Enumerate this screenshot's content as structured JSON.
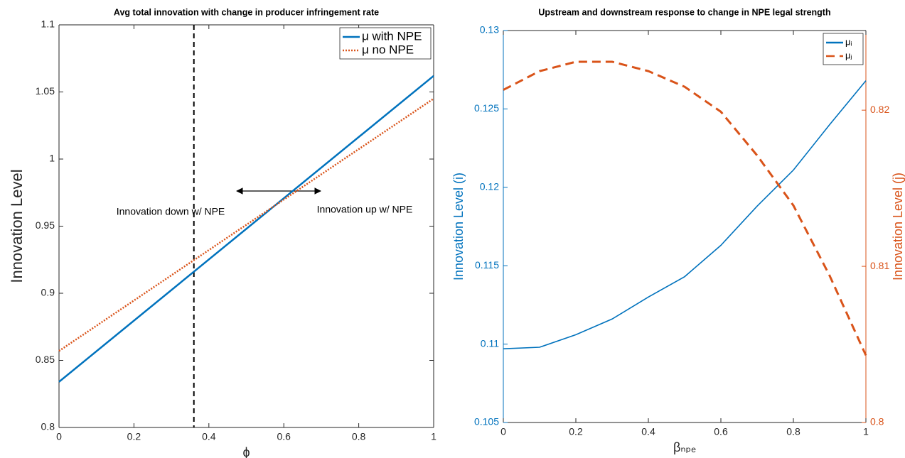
{
  "chart_data": [
    {
      "type": "line",
      "title": "Avg total innovation with change in producer infringement rate",
      "xlabel": "ϕ",
      "ylabel": "Innovation Level",
      "xlim": [
        0,
        1
      ],
      "xticks": [
        0,
        0.2,
        0.4,
        0.6,
        0.8,
        1
      ],
      "ylim": [
        0.8,
        1.1
      ],
      "yticks": [
        0.8,
        0.85,
        0.9,
        0.95,
        1,
        1.05,
        1.1
      ],
      "vline": 0.36,
      "legend": "northeast",
      "annotations": [
        "Innovation down w/ NPE",
        "Innovation up w/ NPE"
      ],
      "series": [
        {
          "name": "μ with NPE",
          "color": "#0072bd",
          "style": "solid",
          "x": [
            0,
            1
          ],
          "values": [
            0.834,
            1.062
          ]
        },
        {
          "name": "μ no NPE",
          "color": "#d95319",
          "style": "dotted",
          "x": [
            0,
            1
          ],
          "values": [
            0.857,
            1.045
          ]
        }
      ]
    },
    {
      "type": "line",
      "title": "Upstream and downstream response to change in NPE legal strength",
      "xlabel": "βₙₚₑ",
      "ylabel": "Innovation Level (i)",
      "y2label": "Innovation Level (j)",
      "xlim": [
        0,
        1
      ],
      "xticks": [
        0,
        0.2,
        0.4,
        0.6,
        0.8,
        1
      ],
      "ylim": [
        0.105,
        0.13
      ],
      "yticks": [
        0.105,
        0.11,
        0.115,
        0.12,
        0.125,
        0.13
      ],
      "y2lim": [
        0.8,
        0.8251
      ],
      "y2ticks": [
        0.8,
        0.81,
        0.82
      ],
      "legend": "northeast",
      "x": [
        0,
        0.1,
        0.2,
        0.3,
        0.4,
        0.5,
        0.6,
        0.7,
        0.8,
        0.9,
        1
      ],
      "series": [
        {
          "name": "μᵢ",
          "color": "#0072bd",
          "style": "solid",
          "values": [
            0.1097,
            0.1098,
            0.1106,
            0.1116,
            0.113,
            0.1143,
            0.1163,
            0.1188,
            0.1211,
            0.124,
            0.1268
          ]
        },
        {
          "name": "μⱼ",
          "color": "#d95319",
          "style": "dashed",
          "axis": "y2",
          "values": [
            0.8213,
            0.8225,
            0.8231,
            0.8231,
            0.8225,
            0.8215,
            0.8199,
            0.8171,
            0.8139,
            0.8094,
            0.8043
          ]
        }
      ]
    }
  ]
}
